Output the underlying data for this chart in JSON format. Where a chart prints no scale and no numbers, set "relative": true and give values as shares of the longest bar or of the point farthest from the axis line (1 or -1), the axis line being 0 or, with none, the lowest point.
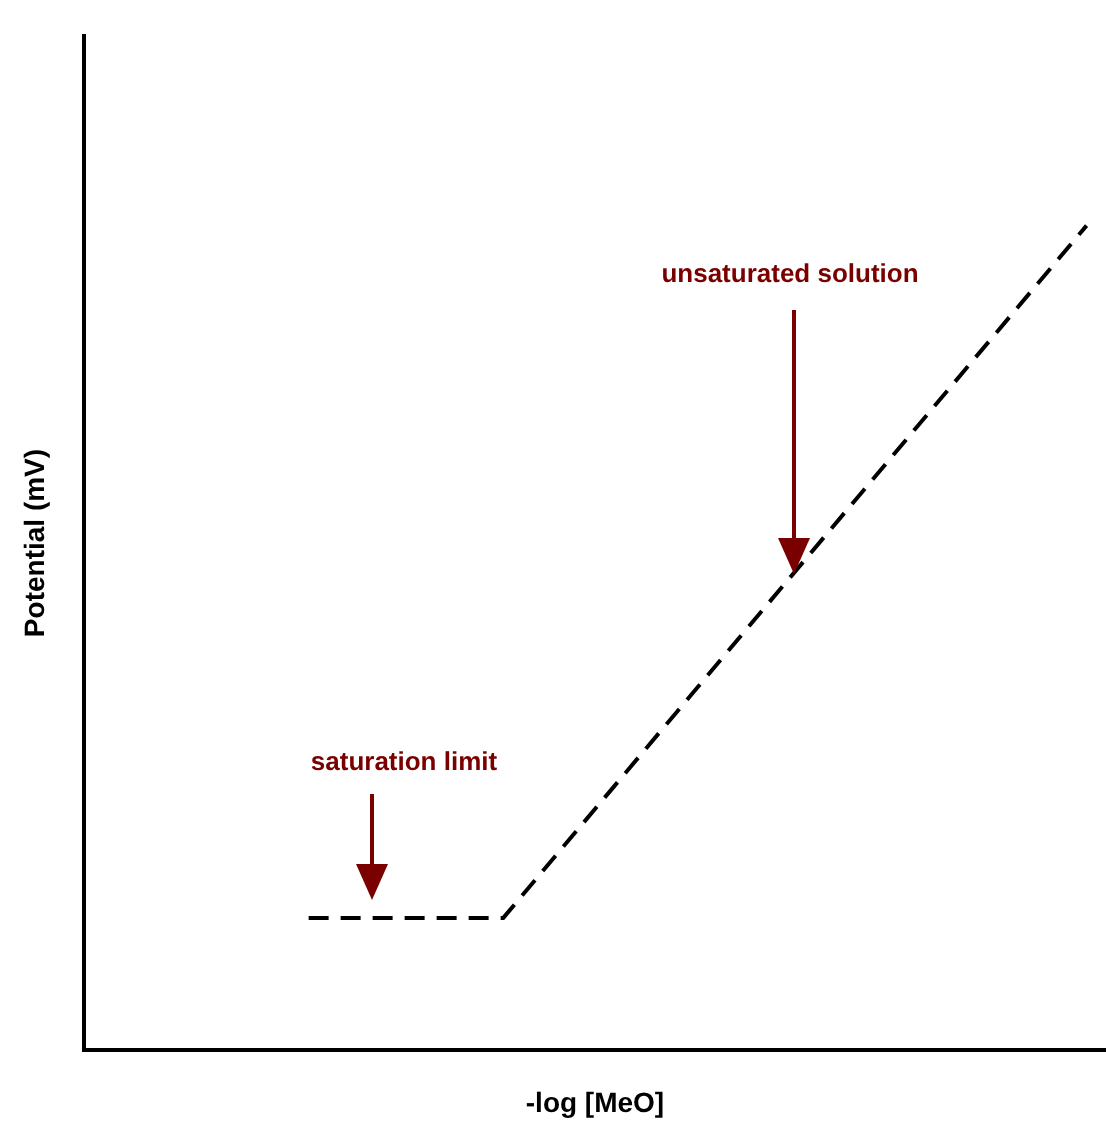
{
  "chart_data": {
    "type": "line",
    "relative": true,
    "xlabel": "-log [MeO]",
    "ylabel": "Potential (mV)",
    "categories": [
      null,
      null,
      null,
      null,
      null
    ],
    "series": [
      {
        "color": "#000000",
        "values": [
          0.16,
          0.16,
          0.44,
          0.72,
          1
        ]
      }
    ],
    "line_style": "dashed",
    "marker": "none",
    "grid": false,
    "legend": false,
    "annotations": [
      "unsaturated solution",
      "saturation limit"
    ]
  }
}
